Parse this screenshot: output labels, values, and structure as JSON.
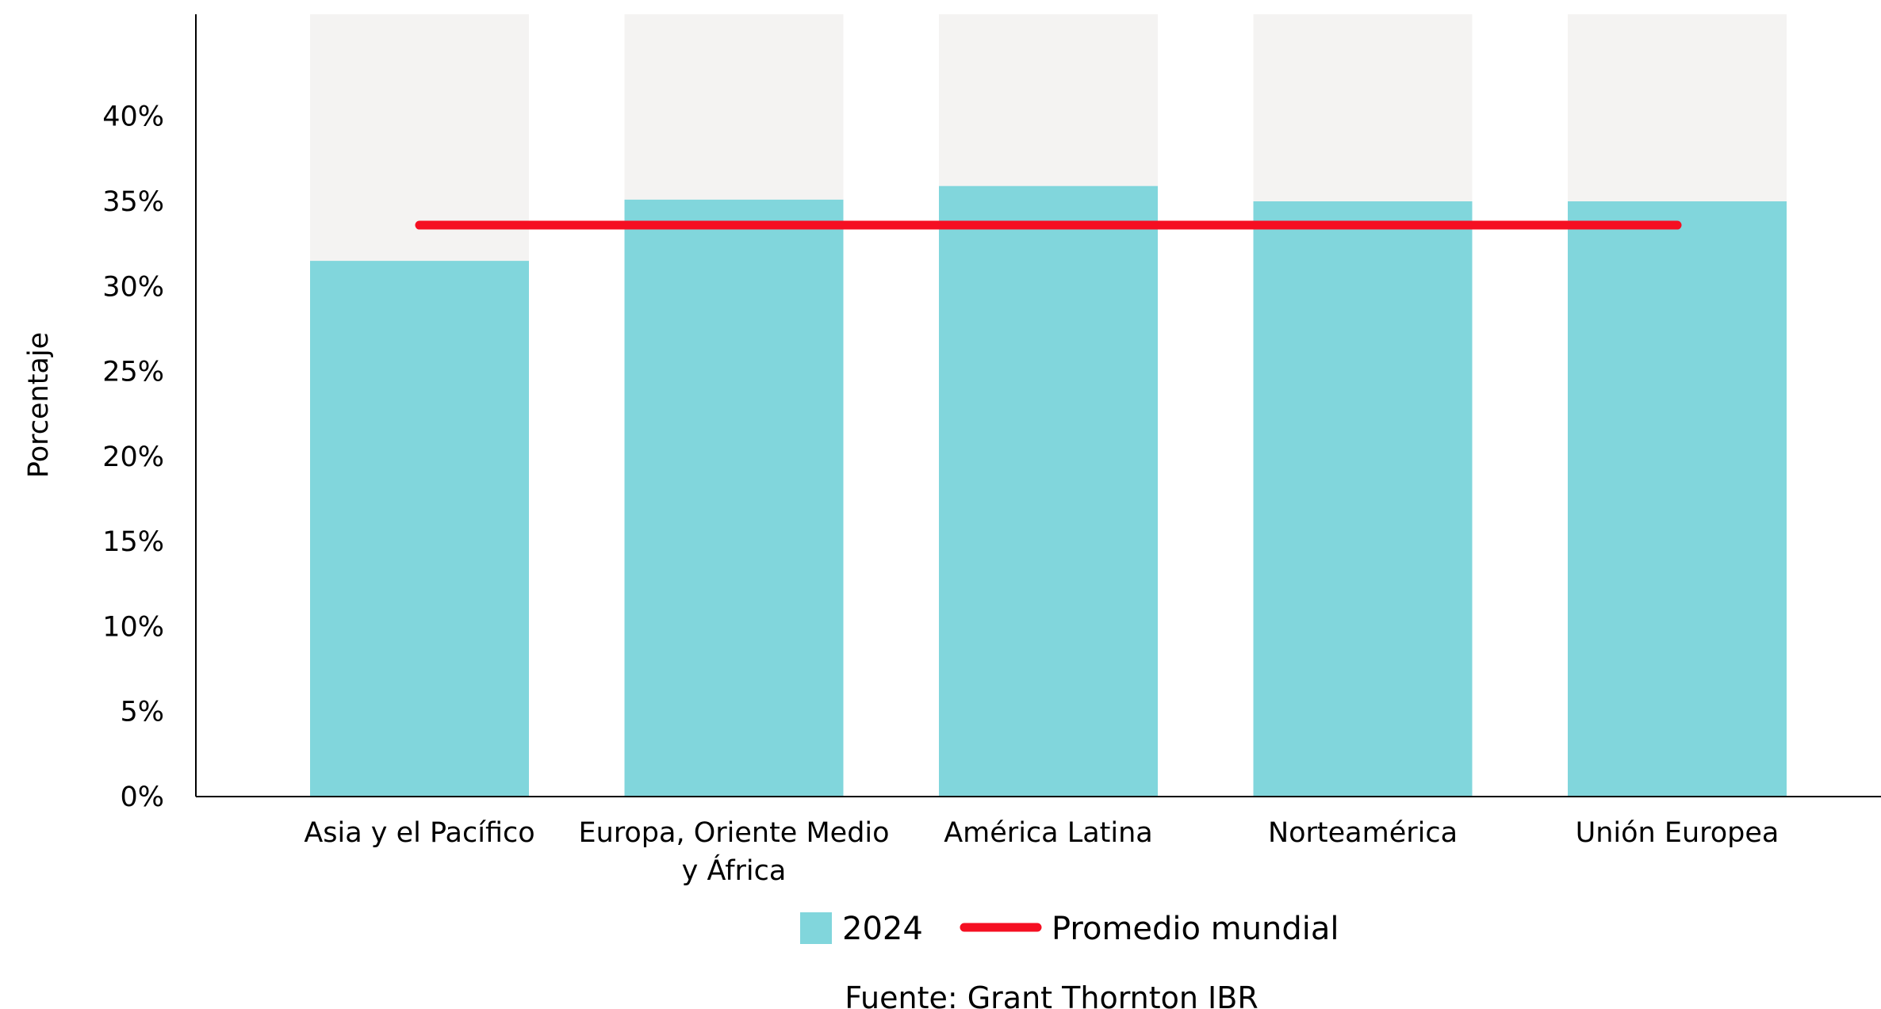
{
  "chart_data": {
    "type": "bar",
    "ylabel": "Porcentaje",
    "xlabel": "",
    "ylim": [
      0,
      46
    ],
    "y_ticks": [
      {
        "value": 0,
        "label": "0%"
      },
      {
        "value": 5,
        "label": "5%"
      },
      {
        "value": 10,
        "label": "10%"
      },
      {
        "value": 15,
        "label": "15%"
      },
      {
        "value": 20,
        "label": "20%"
      },
      {
        "value": 25,
        "label": "25%"
      },
      {
        "value": 30,
        "label": "30%"
      },
      {
        "value": 35,
        "label": "35%"
      },
      {
        "value": 40,
        "label": "40%"
      }
    ],
    "categories": [
      [
        "Asia y el Pacífico"
      ],
      [
        "Europa, Oriente Medio",
        "y África"
      ],
      [
        "América Latina"
      ],
      [
        "Norteamérica"
      ],
      [
        "Unión Europea"
      ]
    ],
    "series": [
      {
        "name": "2024",
        "values": [
          31.5,
          35.1,
          35.9,
          35.0,
          35.0
        ],
        "color": "#81D6DC"
      }
    ],
    "background_value": 46,
    "background_color": "#F4F3F2",
    "reference_line": {
      "name": "Promedio mundial",
      "value": 33.6,
      "color": "#F50F22"
    },
    "legend": {
      "placement": "bottom-center"
    },
    "grid": false
  },
  "source": "Fuente: Grant Thornton IBR"
}
